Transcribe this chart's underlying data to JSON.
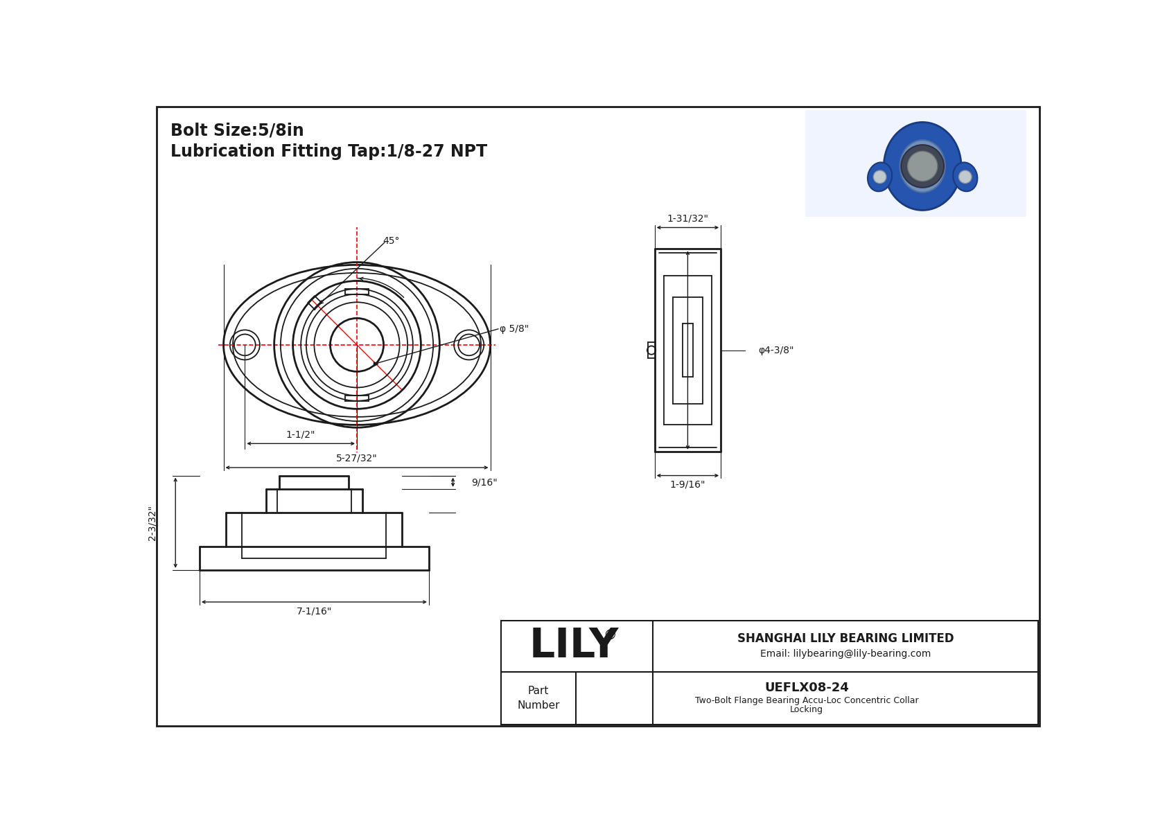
{
  "bg_color": "#ffffff",
  "line_color": "#1a1a1a",
  "red_color": "#ff0000",
  "title_line1": "Bolt Size:5/8in",
  "title_line2": "Lubrication Fitting Tap:1/8-27 NPT",
  "title_fontsize": 17,
  "dim_fontsize": 10,
  "company_name": "LILY",
  "company_reg": "®",
  "company_full": "SHANGHAI LILY BEARING LIMITED",
  "company_email": "Email: lilybearing@lily-bearing.com",
  "part_number_label": "Part\nNumber",
  "part_number_value": "UEFLX08-24",
  "part_desc_1": "Two-Bolt Flange Bearing Accu-Loc Concentric Collar",
  "part_desc_2": "Locking",
  "dim_45deg": "45°",
  "dim_bore": "φ 5/8\"",
  "dim_bolt_circle": "1-1/2\"",
  "dim_total_width": "5-27/32\"",
  "dim_side_width": "1-31/32\"",
  "dim_side_od": "φ4-3/8\"",
  "dim_side_depth": "1-9/16\"",
  "dim_front_height": "2-3/32\"",
  "dim_front_top": "9/16\"",
  "dim_front_width": "7-1/16\""
}
